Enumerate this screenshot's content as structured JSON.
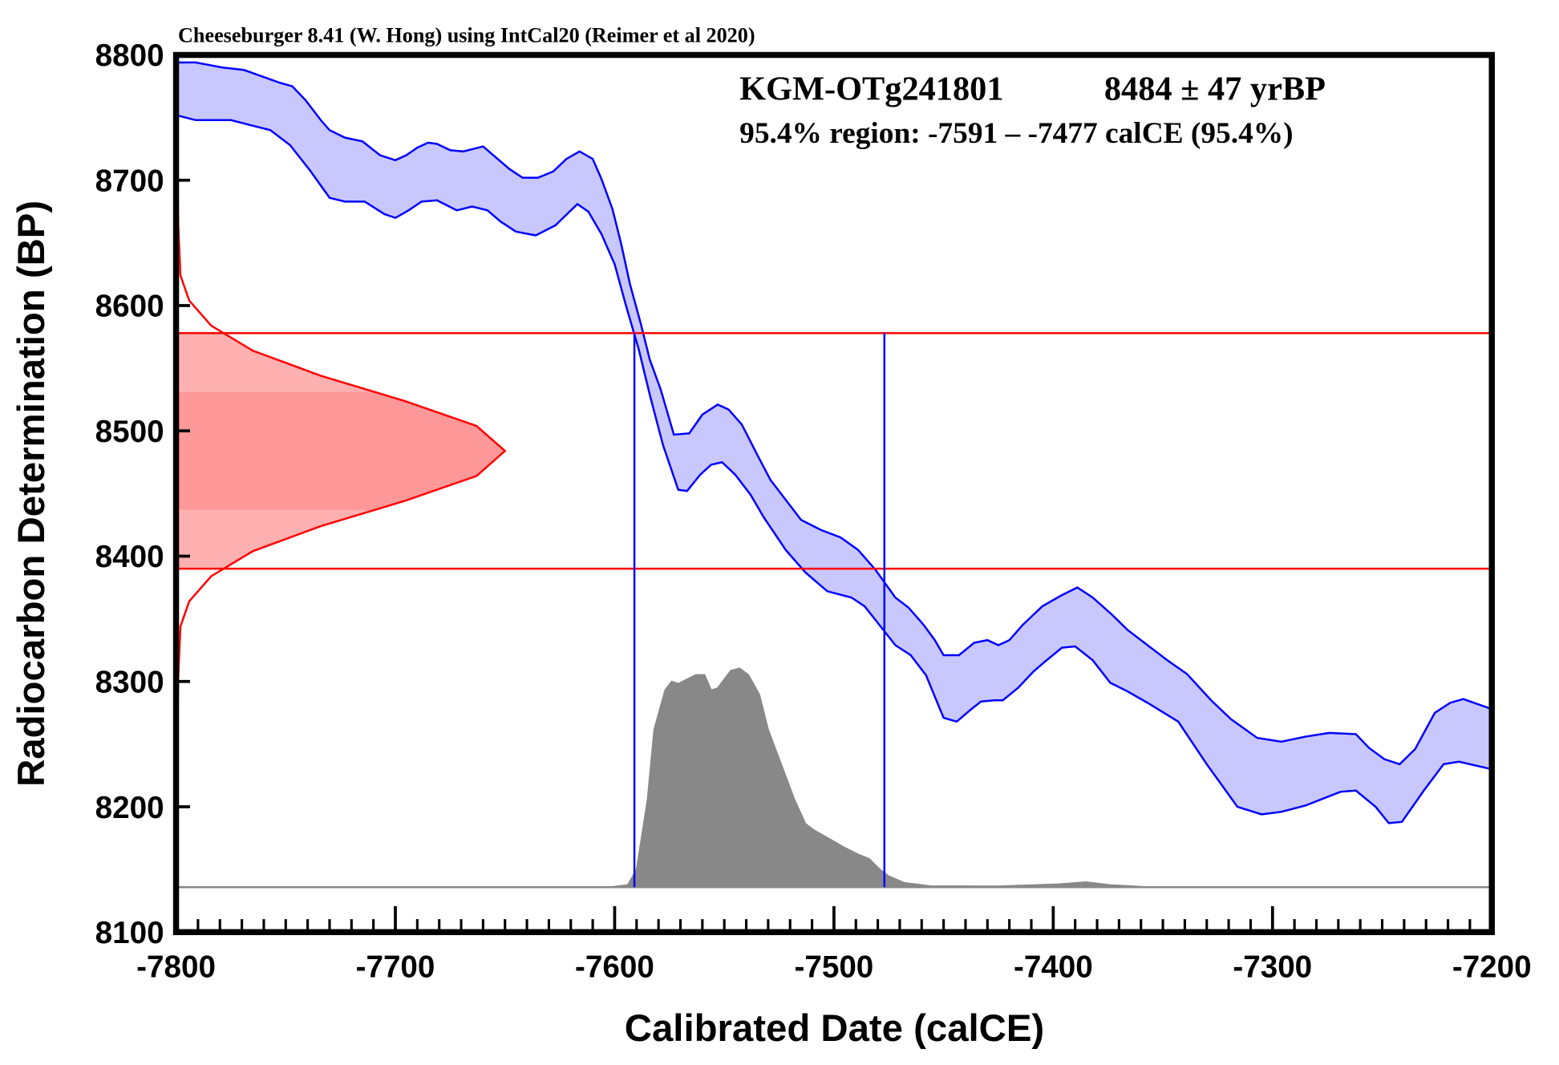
{
  "chart_data": {
    "type": "calibration",
    "title": "Cheeseburger 8.41 (W. Hong) using IntCal20 (Reimer et al 2020)",
    "sample": "KGM-OTg241801",
    "measurement": "8484 ± 47 yrBP",
    "region": "95.4% region: -7591 – -7477 calCE (95.4%)",
    "xlabel": "Calibrated Date (calCE)",
    "ylabel": "Radiocarbon Determination (BP)",
    "xlim": [
      -7800,
      -7200
    ],
    "ylim": [
      8100,
      8800
    ],
    "xticks": [
      -7800,
      -7700,
      -7600,
      -7500,
      -7400,
      -7300,
      -7200
    ],
    "xminorticks": [
      -7790,
      -7780,
      -7770,
      -7760,
      -7750,
      -7740,
      -7730,
      -7720,
      -7710,
      -7690,
      -7680,
      -7670,
      -7660,
      -7650,
      -7640,
      -7630,
      -7620,
      -7610,
      -7590,
      -7580,
      -7570,
      -7560,
      -7550,
      -7540,
      -7530,
      -7520,
      -7510,
      -7490,
      -7480,
      -7470,
      -7460,
      -7450,
      -7440,
      -7430,
      -7420,
      -7410,
      -7390,
      -7380,
      -7370,
      -7360,
      -7350,
      -7340,
      -7330,
      -7320,
      -7310,
      -7290,
      -7280,
      -7270,
      -7260,
      -7250,
      -7240,
      -7230,
      -7220,
      -7210
    ],
    "yticks": [
      8100,
      8200,
      8300,
      8400,
      8500,
      8600,
      8700,
      8800
    ],
    "curve_color": "#0000ff",
    "curve_fill": "#c8c8ff",
    "upper": {
      "x": [
        -7800,
        -7791,
        -7779,
        -7769,
        -7761,
        -7753,
        -7747,
        -7741,
        -7734,
        -7730,
        -7723,
        -7715,
        -7707,
        -7700,
        -7695,
        -7690,
        -7685,
        -7681,
        -7675,
        -7669,
        -7660,
        -7654,
        -7648,
        -7642,
        -7635,
        -7628,
        -7622,
        -7616,
        -7610,
        -7606,
        -7601,
        -7597,
        -7593,
        -7588,
        -7584,
        -7579,
        -7573,
        -7566,
        -7560,
        -7553,
        -7548,
        -7542,
        -7535,
        -7529,
        -7522,
        -7515,
        -7506,
        -7497,
        -7489,
        -7481,
        -7472,
        -7466,
        -7459,
        -7454,
        -7450,
        -7443,
        -7436,
        -7430,
        -7425,
        -7420,
        -7414,
        -7405,
        -7396,
        -7389,
        -7382,
        -7373,
        -7366,
        -7357,
        -7348,
        -7339,
        -7328,
        -7319,
        -7307,
        -7296,
        -7285,
        -7274,
        -7262,
        -7256,
        -7249,
        -7242,
        -7235,
        -7226,
        -7219,
        -7213,
        -7200
      ],
      "values": [
        8794,
        8794,
        8790,
        8788,
        8783,
        8778,
        8775,
        8764,
        8748,
        8740,
        8734,
        8731,
        8720,
        8716,
        8720,
        8726,
        8730,
        8729,
        8724,
        8723,
        8727,
        8718,
        8709,
        8702,
        8702,
        8707,
        8717,
        8723,
        8717,
        8701,
        8677,
        8649,
        8617,
        8585,
        8557,
        8533,
        8497,
        8498,
        8513,
        8521,
        8517,
        8505,
        8481,
        8461,
        8445,
        8429,
        8421,
        8415,
        8405,
        8389,
        8367,
        8359,
        8345,
        8333,
        8321,
        8321,
        8331,
        8333,
        8329,
        8333,
        8345,
        8360,
        8369,
        8375,
        8367,
        8353,
        8341,
        8329,
        8317,
        8306,
        8285,
        8270,
        8255,
        8252,
        8256,
        8259,
        8258,
        8247,
        8238,
        8234,
        8246,
        8275,
        8283,
        8286,
        8278
      ]
    },
    "lower": {
      "x": [
        -7800,
        -7791,
        -7775,
        -7766,
        -7757,
        -7748,
        -7739,
        -7730,
        -7723,
        -7714,
        -7705,
        -7700,
        -7694,
        -7688,
        -7681,
        -7672,
        -7665,
        -7658,
        -7652,
        -7645,
        -7636,
        -7627,
        -7617,
        -7612,
        -7606,
        -7600,
        -7595,
        -7589,
        -7584,
        -7578,
        -7571,
        -7567,
        -7561,
        -7556,
        -7551,
        -7545,
        -7538,
        -7532,
        -7522,
        -7513,
        -7503,
        -7492,
        -7486,
        -7481,
        -7472,
        -7465,
        -7458,
        -7450,
        -7444,
        -7438,
        -7433,
        -7427,
        -7423,
        -7416,
        -7409,
        -7403,
        -7396,
        -7390,
        -7382,
        -7374,
        -7366,
        -7357,
        -7343,
        -7330,
        -7316,
        -7305,
        -7296,
        -7285,
        -7269,
        -7262,
        -7253,
        -7247,
        -7241,
        -7231,
        -7222,
        -7215,
        -7200
      ],
      "values": [
        8752,
        8748,
        8748,
        8744,
        8740,
        8728,
        8708,
        8686,
        8683,
        8683,
        8673,
        8670,
        8676,
        8683,
        8684,
        8676,
        8679,
        8676,
        8667,
        8659,
        8656,
        8664,
        8681,
        8675,
        8657,
        8633,
        8601,
        8565,
        8529,
        8489,
        8453,
        8452,
        8465,
        8473,
        8475,
        8465,
        8449,
        8431,
        8405,
        8387,
        8372,
        8367,
        8360,
        8349,
        8329,
        8321,
        8305,
        8271,
        8268,
        8277,
        8284,
        8285,
        8285,
        8295,
        8308,
        8317,
        8327,
        8328,
        8317,
        8299,
        8292,
        8283,
        8268,
        8234,
        8200,
        8194,
        8196,
        8201,
        8212,
        8213,
        8200,
        8187,
        8188,
        8213,
        8234,
        8236,
        8230
      ]
    },
    "range_color": "#ff0000",
    "range_y": [
      8390,
      8578
    ],
    "range_x": [
      -7591,
      -7477
    ],
    "likelihood": {
      "y": [
        8204,
        8304,
        8344,
        8364,
        8384,
        8404,
        8424,
        8444,
        8464,
        8484,
        8504,
        8524,
        8544,
        8564,
        8584,
        8604,
        8624,
        8664,
        8764
      ],
      "x": [
        -7800,
        -7799,
        -7798,
        -7794,
        -7784,
        -7765,
        -7734,
        -7696,
        -7663,
        -7650,
        -7663,
        -7696,
        -7734,
        -7765,
        -7784,
        -7794,
        -7798,
        -7799,
        -7800
      ],
      "inner_band": [
        8437,
        8531
      ]
    },
    "probability": {
      "color": "#888888",
      "x": [
        -7800,
        -7602,
        -7594,
        -7590,
        -7585,
        -7582,
        -7577,
        -7574,
        -7571,
        -7567,
        -7563,
        -7559,
        -7556,
        -7553,
        -7550,
        -7547,
        -7543,
        -7539,
        -7534,
        -7530,
        -7524,
        -7518,
        -7513,
        -7509,
        -7502,
        -7495,
        -7489,
        -7484,
        -7479,
        -7475,
        -7468,
        -7456,
        -7425,
        -7397,
        -7385,
        -7374,
        -7356,
        -7200
      ],
      "values": [
        0,
        0,
        0.01,
        0.08,
        0.4,
        0.72,
        0.9,
        0.94,
        0.93,
        0.95,
        0.97,
        0.97,
        0.9,
        0.91,
        0.95,
        0.99,
        1.0,
        0.97,
        0.88,
        0.72,
        0.56,
        0.4,
        0.29,
        0.26,
        0.22,
        0.18,
        0.15,
        0.13,
        0.08,
        0.05,
        0.02,
        0.005,
        0.004,
        0.014,
        0.023,
        0.01,
        0,
        0
      ]
    }
  }
}
